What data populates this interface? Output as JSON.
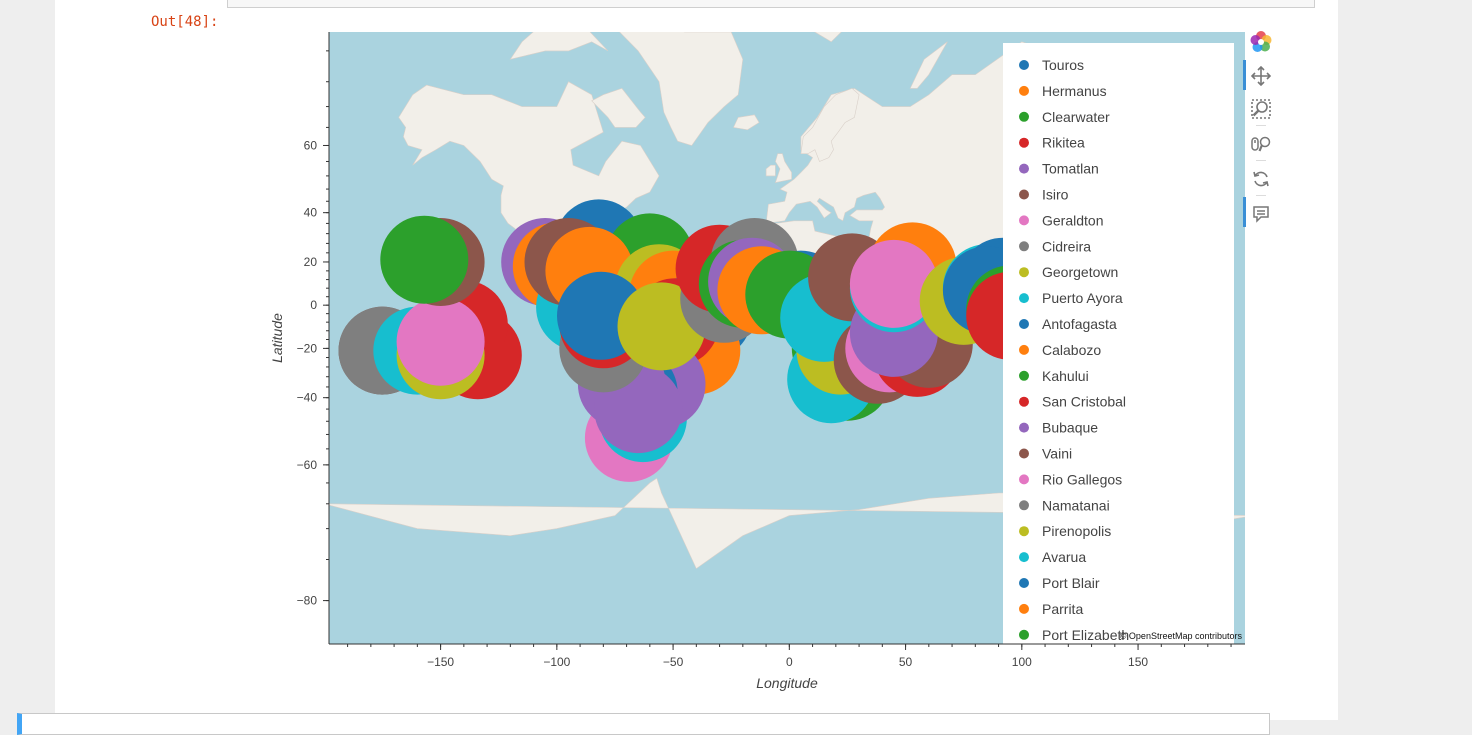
{
  "output_prompt": "Out[48]:",
  "map": {
    "attribution": "© OpenStreetMap contributors",
    "xlabel": "Longitude",
    "ylabel": "Latitude",
    "x_ticks": [
      -150,
      -100,
      -50,
      0,
      50,
      100,
      150
    ],
    "y_ticks": [
      60,
      40,
      20,
      0,
      -20,
      -40,
      -60,
      -80
    ],
    "xlim": [
      -198,
      196
    ],
    "ylim": [
      -83,
      78
    ]
  },
  "legend": {
    "items": [
      {
        "label": "Touros",
        "color": "#1f77b4"
      },
      {
        "label": "Hermanus",
        "color": "#ff7f0e"
      },
      {
        "label": "Clearwater",
        "color": "#2ca02c"
      },
      {
        "label": "Rikitea",
        "color": "#d62728"
      },
      {
        "label": "Tomatlan",
        "color": "#9467bd"
      },
      {
        "label": "Isiro",
        "color": "#8c564b"
      },
      {
        "label": "Geraldton",
        "color": "#e377c2"
      },
      {
        "label": "Cidreira",
        "color": "#7f7f7f"
      },
      {
        "label": "Georgetown",
        "color": "#bcbd22"
      },
      {
        "label": "Puerto Ayora",
        "color": "#17becf"
      },
      {
        "label": "Antofagasta",
        "color": "#1f77b4"
      },
      {
        "label": "Calabozo",
        "color": "#ff7f0e"
      },
      {
        "label": "Kahului",
        "color": "#2ca02c"
      },
      {
        "label": "San Cristobal",
        "color": "#d62728"
      },
      {
        "label": "Bubaque",
        "color": "#9467bd"
      },
      {
        "label": "Vaini",
        "color": "#8c564b"
      },
      {
        "label": "Rio Gallegos",
        "color": "#e377c2"
      },
      {
        "label": "Namatanai",
        "color": "#7f7f7f"
      },
      {
        "label": "Pirenopolis",
        "color": "#bcbd22"
      },
      {
        "label": "Avarua",
        "color": "#17becf"
      },
      {
        "label": "Port Blair",
        "color": "#1f77b4"
      },
      {
        "label": "Parrita",
        "color": "#ff7f0e"
      },
      {
        "label": "Port Elizabeth",
        "color": "#2ca02c"
      }
    ]
  },
  "points": [
    {
      "lon": -175,
      "lat": -21,
      "color": "#8c564b"
    },
    {
      "lon": -175,
      "lat": -21,
      "color": "#7f7f7f"
    },
    {
      "lon": -160,
      "lat": -21,
      "color": "#17becf"
    },
    {
      "lon": -134,
      "lat": -23,
      "color": "#d62728"
    },
    {
      "lon": -140,
      "lat": -9,
      "color": "#d62728"
    },
    {
      "lon": -150,
      "lat": -23,
      "color": "#bcbd22"
    },
    {
      "lon": -150,
      "lat": -17,
      "color": "#e377c2"
    },
    {
      "lon": -150,
      "lat": 20,
      "color": "#8c564b"
    },
    {
      "lon": -157,
      "lat": 21,
      "color": "#2ca02c"
    },
    {
      "lon": -105,
      "lat": 20,
      "color": "#9467bd"
    },
    {
      "lon": -100,
      "lat": 18,
      "color": "#ff7f0e"
    },
    {
      "lon": -87,
      "lat": 8,
      "color": "#2ca02c"
    },
    {
      "lon": -82,
      "lat": 28,
      "color": "#1f77b4"
    },
    {
      "lon": -60,
      "lat": 22,
      "color": "#2ca02c"
    },
    {
      "lon": -90,
      "lat": -1,
      "color": "#17becf"
    },
    {
      "lon": -95,
      "lat": 20,
      "color": "#8c564b"
    },
    {
      "lon": -86,
      "lat": 16,
      "color": "#ff7f0e"
    },
    {
      "lon": -70,
      "lat": -3,
      "color": "#ff7f0e"
    },
    {
      "lon": -56,
      "lat": 8,
      "color": "#bcbd22"
    },
    {
      "lon": -50,
      "lat": 5,
      "color": "#ff7f0e"
    },
    {
      "lon": -39,
      "lat": -5,
      "color": "#17becf"
    },
    {
      "lon": -35,
      "lat": -5,
      "color": "#1f77b4"
    },
    {
      "lon": -40,
      "lat": -21,
      "color": "#ff7f0e"
    },
    {
      "lon": -49,
      "lat": -8,
      "color": "#d62728"
    },
    {
      "lon": -69,
      "lat": -53,
      "color": "#e377c2"
    },
    {
      "lon": -63,
      "lat": -47,
      "color": "#17becf"
    },
    {
      "lon": -55,
      "lat": -35,
      "color": "#9467bd"
    },
    {
      "lon": -67,
      "lat": -38,
      "color": "#1f77b4"
    },
    {
      "lon": -72,
      "lat": -35,
      "color": "#9467bd"
    },
    {
      "lon": -65,
      "lat": -44,
      "color": "#9467bd"
    },
    {
      "lon": -80,
      "lat": -20,
      "color": "#7f7f7f"
    },
    {
      "lon": -80,
      "lat": -9,
      "color": "#d62728"
    },
    {
      "lon": -81,
      "lat": -5,
      "color": "#1f77b4"
    },
    {
      "lon": -55,
      "lat": -10,
      "color": "#bcbd22"
    },
    {
      "lon": -28,
      "lat": 3,
      "color": "#7f7f7f"
    },
    {
      "lon": -30,
      "lat": 17,
      "color": "#d62728"
    },
    {
      "lon": -15,
      "lat": 20,
      "color": "#7f7f7f"
    },
    {
      "lon": -20,
      "lat": 10,
      "color": "#2ca02c"
    },
    {
      "lon": -16,
      "lat": 11,
      "color": "#9467bd"
    },
    {
      "lon": -12,
      "lat": 7,
      "color": "#ff7f0e"
    },
    {
      "lon": 5,
      "lat": 5,
      "color": "#1f77b4"
    },
    {
      "lon": 15,
      "lat": 0,
      "color": "#2ca02c"
    },
    {
      "lon": 0,
      "lat": 5,
      "color": "#2ca02c"
    },
    {
      "lon": 20,
      "lat": -20,
      "color": "#2ca02c"
    },
    {
      "lon": 25,
      "lat": -32,
      "color": "#2ca02c"
    },
    {
      "lon": 18,
      "lat": -33,
      "color": "#17becf"
    },
    {
      "lon": 22,
      "lat": -21,
      "color": "#bcbd22"
    },
    {
      "lon": 15,
      "lat": -6,
      "color": "#17becf"
    },
    {
      "lon": 27,
      "lat": 13,
      "color": "#8c564b"
    },
    {
      "lon": 38,
      "lat": -25,
      "color": "#8c564b"
    },
    {
      "lon": 48,
      "lat": -18,
      "color": "#ff7f0e"
    },
    {
      "lon": 43,
      "lat": -20,
      "color": "#e377c2"
    },
    {
      "lon": 55,
      "lat": -22,
      "color": "#d62728"
    },
    {
      "lon": 60,
      "lat": -18,
      "color": "#8c564b"
    },
    {
      "lon": 45,
      "lat": -13,
      "color": "#9467bd"
    },
    {
      "lon": 53,
      "lat": 18,
      "color": "#ff7f0e"
    },
    {
      "lon": 45,
      "lat": 8,
      "color": "#17becf"
    },
    {
      "lon": 45,
      "lat": 10,
      "color": "#e377c2"
    },
    {
      "lon": 75,
      "lat": 2,
      "color": "#bcbd22"
    },
    {
      "lon": 85,
      "lat": 8,
      "color": "#17becf"
    },
    {
      "lon": 92,
      "lat": 11,
      "color": "#1f77b4"
    },
    {
      "lon": 85,
      "lat": 7,
      "color": "#1f77b4"
    },
    {
      "lon": 95,
      "lat": -2,
      "color": "#2ca02c"
    },
    {
      "lon": 95,
      "lat": -5,
      "color": "#d62728"
    }
  ]
}
